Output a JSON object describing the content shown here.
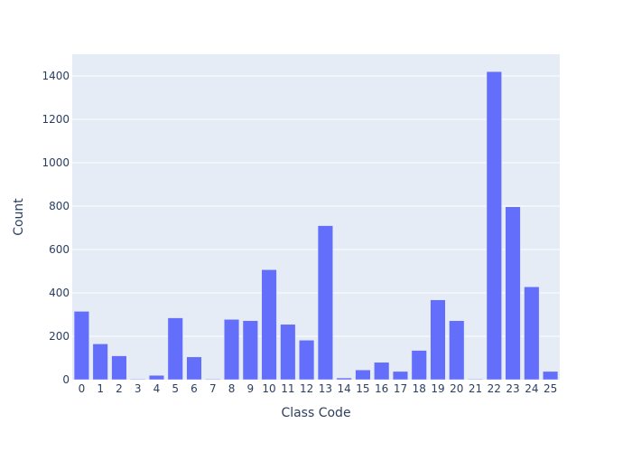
{
  "chart_data": {
    "type": "bar",
    "title": "",
    "xlabel": "Class Code",
    "ylabel": "Count",
    "categories": [
      "0",
      "1",
      "2",
      "3",
      "4",
      "5",
      "6",
      "7",
      "8",
      "9",
      "10",
      "11",
      "12",
      "13",
      "14",
      "15",
      "16",
      "17",
      "18",
      "19",
      "20",
      "21",
      "22",
      "23",
      "24",
      "25"
    ],
    "values": [
      315,
      165,
      110,
      3,
      20,
      285,
      105,
      3,
      278,
      272,
      507,
      255,
      182,
      710,
      8,
      45,
      80,
      38,
      135,
      368,
      272,
      3,
      1420,
      797,
      428,
      38
    ],
    "ylim": [
      0,
      1500
    ],
    "yticks": [
      0,
      200,
      400,
      600,
      800,
      1000,
      1200,
      1400
    ],
    "grid": true,
    "legend": "none"
  },
  "colors": {
    "plot_background": "#e5ecf6",
    "bar": "#636efa",
    "grid": "#ffffff",
    "text": "#2a3f5f"
  }
}
